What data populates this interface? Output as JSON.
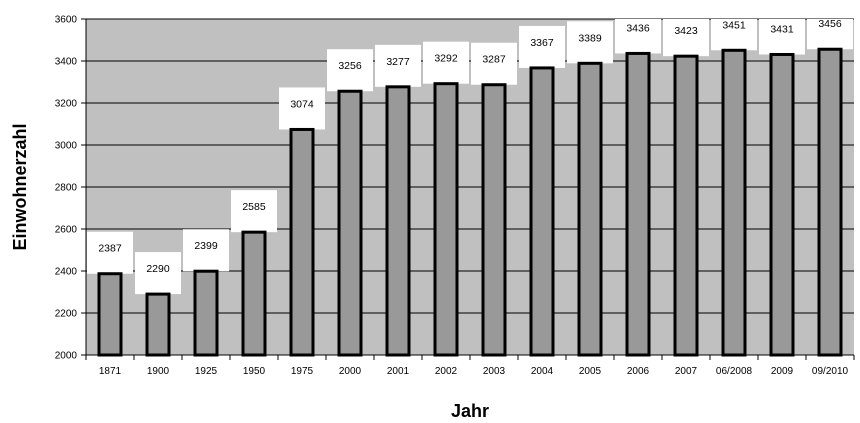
{
  "chart_data": {
    "type": "bar",
    "categories": [
      "1871",
      "1900",
      "1925",
      "1950",
      "1975",
      "2000",
      "2001",
      "2002",
      "2003",
      "2004",
      "2005",
      "2006",
      "2007",
      "06/2008",
      "2009",
      "09/2010"
    ],
    "values": [
      2387,
      2290,
      2399,
      2585,
      3074,
      3256,
      3277,
      3292,
      3287,
      3367,
      3389,
      3436,
      3423,
      3451,
      3431,
      3456
    ],
    "data_labels": [
      "2387",
      "2290",
      "2399",
      "2585",
      "3074",
      "3256",
      "3277",
      "3292",
      "3287",
      "3367",
      "3389",
      "3436",
      "3423",
      "3451",
      "3431",
      "3456"
    ],
    "xlabel": "Jahr",
    "ylabel": "Einwohnerzahl",
    "ylim": [
      2000,
      3600
    ],
    "yticks": [
      "2000",
      "2200",
      "2400",
      "2600",
      "2800",
      "3000",
      "3200",
      "3400",
      "3600"
    ],
    "grid": true,
    "legend": "none",
    "colors": {
      "bar_fill": "#999999",
      "bar_stroke": "#000000",
      "plot_background": "#c0c0c0",
      "label_background": "#ffffff",
      "gridline": "#000000"
    }
  }
}
